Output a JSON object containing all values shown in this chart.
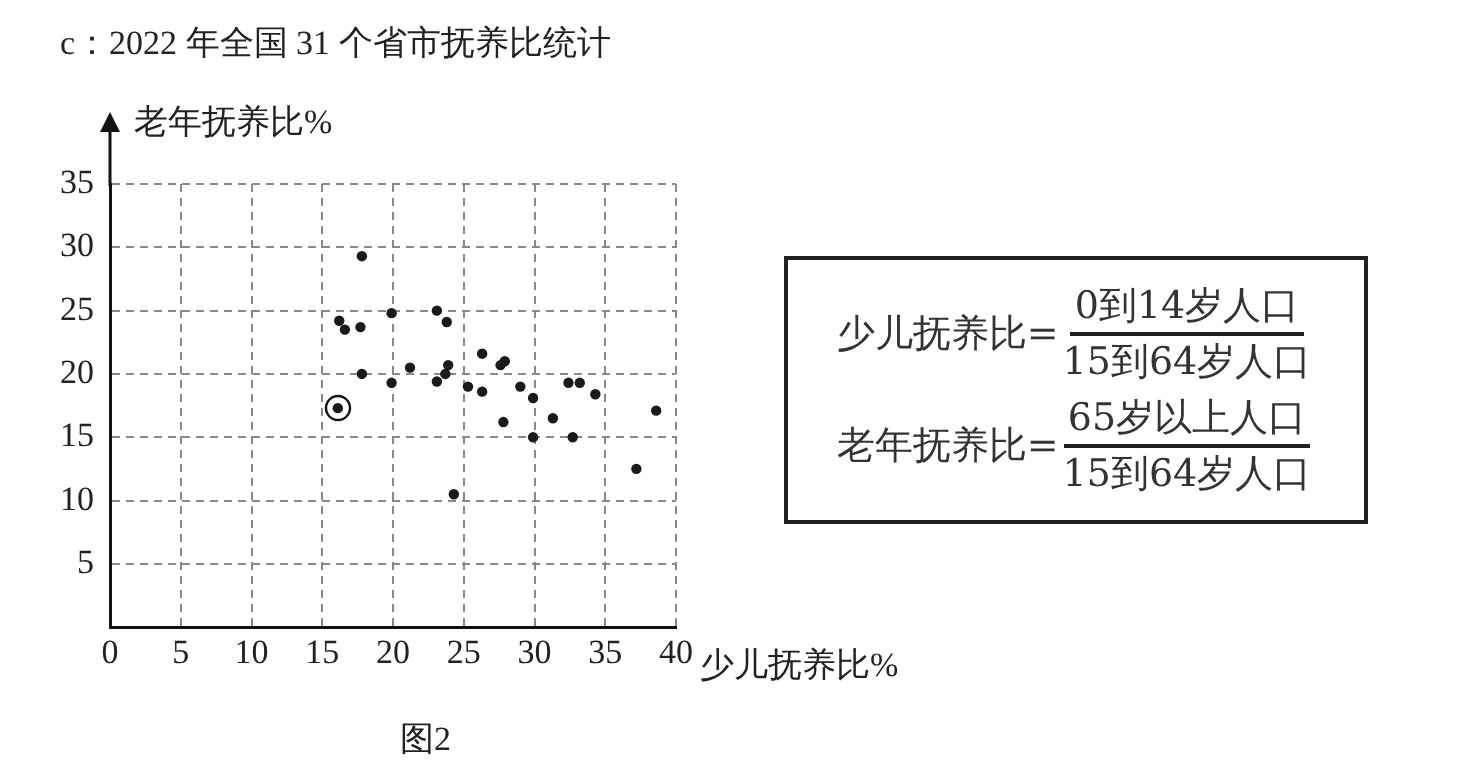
{
  "chart_data": [
    {
      "type": "scatter",
      "title": "c：2022 年全国 31  个省市抚养比统计",
      "xlabel": "少儿抚养比%",
      "ylabel": "老年抚养比%",
      "annotations": [
        "图2"
      ],
      "series": [
        {
          "color": "#1a1a1a",
          "x": [
            17.8,
            16.2,
            16.6,
            17.7,
            17.8,
            19.9,
            19.9,
            21.2,
            23.1,
            23.8,
            23.9,
            23.7,
            23.1,
            24.3,
            25.3,
            26.3,
            26.3,
            27.6,
            27.9,
            27.8,
            29.0,
            29.9,
            29.9,
            31.3,
            32.4,
            33.2,
            32.7,
            34.3,
            37.2,
            38.6
          ],
          "values": [
            29.3,
            24.2,
            23.5,
            23.7,
            20.0,
            24.8,
            19.3,
            20.5,
            25.0,
            24.1,
            20.7,
            20.0,
            19.4,
            10.5,
            19.0,
            21.6,
            18.6,
            20.7,
            21.0,
            16.2,
            19.0,
            18.1,
            15.0,
            16.5,
            19.3,
            19.3,
            15.0,
            18.4,
            12.5,
            17.1
          ]
        },
        {
          "color": "#1a1a1a",
          "x": [
            16.1
          ],
          "values": [
            17.3
          ]
        }
      ],
      "xlim": [
        0,
        40
      ],
      "ylim": [
        0,
        35
      ],
      "xticks": [
        0,
        5,
        10,
        15,
        20,
        25,
        30,
        35,
        40
      ],
      "yticks": [
        5,
        10,
        15,
        20,
        25,
        30,
        35
      ],
      "grid": true,
      "legend": false,
      "marker": "circle"
    },
    {
      "type": "other",
      "annotations": [
        "少儿抚养比=",
        "0到14岁人口",
        "15到64岁人口",
        "老年抚养比=",
        "65岁以上人口",
        "15到64岁人口"
      ]
    }
  ]
}
